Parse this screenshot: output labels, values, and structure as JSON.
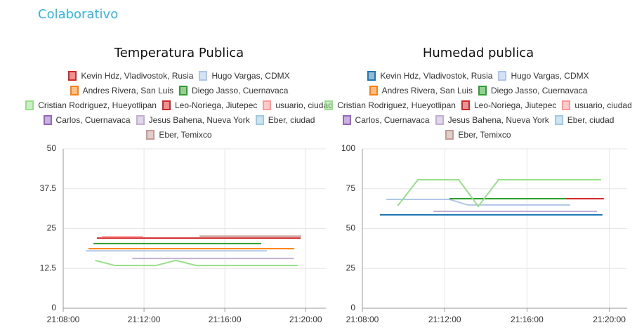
{
  "header": {
    "title": "Colaborativo"
  },
  "chart_data": [
    {
      "type": "line",
      "title": "Temperatura Publica",
      "xlim": [
        "21:08:00",
        "21:21:00"
      ],
      "xticks": [
        "21:08:00",
        "21:12:00",
        "21:16:00",
        "21:20:00"
      ],
      "ylim": [
        0,
        50
      ],
      "yticks": [
        0,
        12.5,
        25,
        37.5,
        50
      ],
      "grid": true,
      "series": [
        {
          "name": "Kevin Hdz, Vladivostok, Rusia",
          "color": "#d62728",
          "x": [
            "21:09:40",
            "21:19:45"
          ],
          "values": [
            22,
            22
          ]
        },
        {
          "name": "Hugo Vargas, CDMX",
          "color": "#aec7e8",
          "x": [
            "21:09:07",
            "21:18:05"
          ],
          "values": [
            18,
            18
          ]
        },
        {
          "name": "Andres Rivera, San Luis",
          "color": "#ff7f0e",
          "x": [
            "21:09:15",
            "21:19:26"
          ],
          "values": [
            18.7,
            18.7
          ]
        },
        {
          "name": "Diego Jasso, Cuernavaca",
          "color": "#2ca02c",
          "x": [
            "21:09:30",
            "21:17:48"
          ],
          "values": [
            20.3,
            20.3
          ]
        },
        {
          "name": "Cristian Rodriguez, Hueyotlipan",
          "color": "#98df8a",
          "x": [
            "21:09:35",
            "21:10:34",
            "21:12:35",
            "21:13:34",
            "21:14:36",
            "21:19:37"
          ],
          "values": [
            15,
            13.4,
            13.4,
            15,
            13.4,
            13.4
          ]
        },
        {
          "name": "Leo-Noriega, Jiutepec",
          "color": "#d62728",
          "x": [],
          "values": []
        },
        {
          "name": "usuario, ciudad",
          "color": "#ff9896",
          "x": [
            "21:09:55",
            "21:11:56"
          ],
          "values": [
            22.4,
            22.4
          ]
        },
        {
          "name": "Carlos, Cuernavaca",
          "color": "#9467bd",
          "x": [],
          "values": []
        },
        {
          "name": "Jesus Bahena, Nueva York",
          "color": "#c5b0d5",
          "x": [
            "21:11:25",
            "21:19:25"
          ],
          "values": [
            15.6,
            15.6
          ]
        },
        {
          "name": "Eber, ciudad",
          "color": "#9ecae1",
          "x": [],
          "values": []
        },
        {
          "name": "Eber, Temixco",
          "color": "#c49c94",
          "x": [
            "21:14:45",
            "21:19:47"
          ],
          "values": [
            22.6,
            22.6
          ]
        }
      ]
    },
    {
      "type": "line",
      "title": "Humedad publica",
      "xlim": [
        "21:08:00",
        "21:20:52"
      ],
      "xticks": [
        "21:08:00",
        "21:12:00",
        "21:16:00",
        "21:20:00"
      ],
      "ylim": [
        0,
        100
      ],
      "yticks": [
        0,
        25,
        50,
        75,
        100
      ],
      "grid": true,
      "series": [
        {
          "name": "Kevin Hdz, Vladivostok, Rusia",
          "color": "#1f77b4",
          "x": [
            "21:08:51",
            "21:19:40"
          ],
          "values": [
            58.6,
            58.6
          ]
        },
        {
          "name": "Hugo Vargas, CDMX",
          "color": "#aec7e8",
          "x": [
            "21:09:10",
            "21:12:14",
            "21:13:07",
            "21:18:06"
          ],
          "values": [
            68.3,
            68.3,
            64.8,
            64.8
          ]
        },
        {
          "name": "Andres Rivera, San Luis",
          "color": "#ff7f0e",
          "x": [],
          "values": []
        },
        {
          "name": "Diego Jasso, Cuernavaca",
          "color": "#2ca02c",
          "x": [
            "21:12:14",
            "21:17:54"
          ],
          "values": [
            68.7,
            68.7
          ]
        },
        {
          "name": "Cristian Rodriguez, Hueyotlipan",
          "color": "#98df8a",
          "x": [
            "21:09:43",
            "21:10:42",
            "21:12:41",
            "21:13:38",
            "21:14:37",
            "21:19:36"
          ],
          "values": [
            64.3,
            80.6,
            80.6,
            63.9,
            80.6,
            80.6
          ]
        },
        {
          "name": "Leo-Noriega, Jiutepec",
          "color": "#d62728",
          "x": [
            "21:17:54",
            "21:19:44"
          ],
          "values": [
            68.7,
            68.7
          ]
        },
        {
          "name": "usuario, ciudad",
          "color": "#ff9896",
          "x": [],
          "values": []
        },
        {
          "name": "Carlos, Cuernavaca",
          "color": "#9467bd",
          "x": [],
          "values": []
        },
        {
          "name": "Jesus Bahena, Nueva York",
          "color": "#c5b0d5",
          "x": [
            "21:11:27",
            "21:19:24"
          ],
          "values": [
            60.8,
            60.8
          ]
        },
        {
          "name": "Eber, ciudad",
          "color": "#9ecae1",
          "x": [],
          "values": []
        },
        {
          "name": "Eber, Temixco",
          "color": "#c49c94",
          "x": [],
          "values": []
        }
      ]
    }
  ]
}
